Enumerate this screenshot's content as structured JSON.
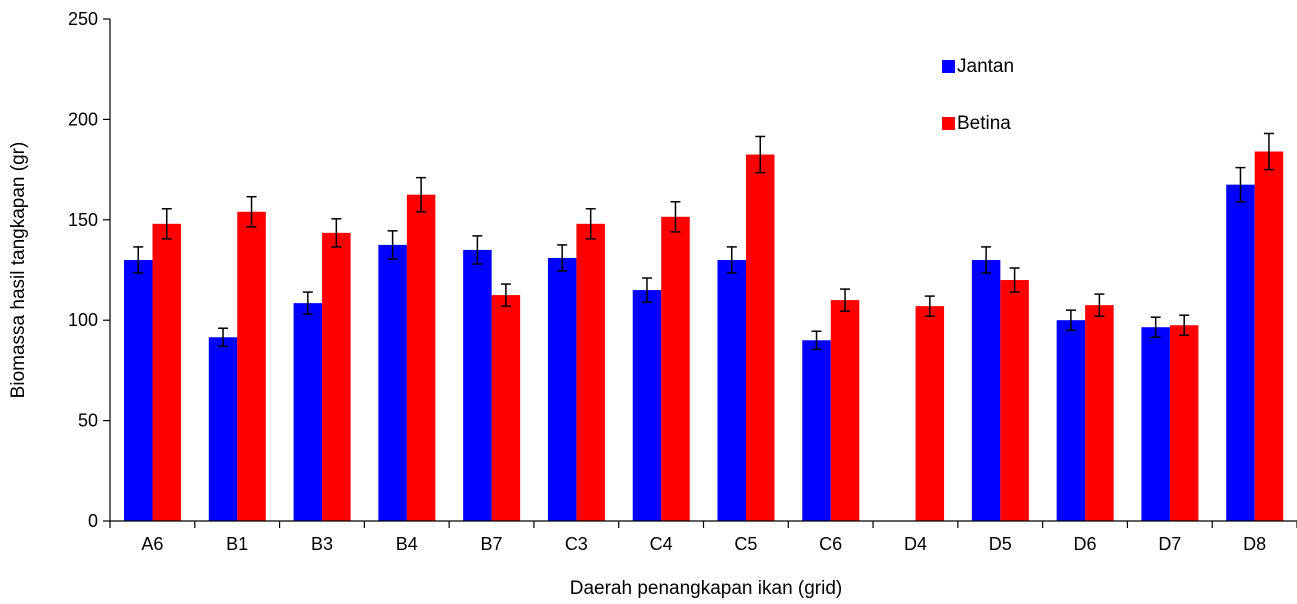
{
  "chart_data": {
    "type": "bar",
    "xlabel": "Daerah penangkapan ikan (grid)",
    "ylabel": "Biomassa hasil tangkapan (gr)",
    "ylim": [
      0,
      250
    ],
    "yticks": [
      0,
      50,
      100,
      150,
      200,
      250
    ],
    "grid": false,
    "legend_position": "top-right",
    "categories": [
      "A6",
      "B1",
      "B3",
      "B4",
      "B7",
      "C3",
      "C4",
      "C5",
      "C6",
      "D4",
      "D5",
      "D6",
      "D7",
      "D8"
    ],
    "series": [
      {
        "name": "Jantan",
        "color": "#0000ff",
        "values": [
          130,
          91.5,
          108.5,
          137.5,
          135,
          131,
          115,
          130,
          90,
          0,
          130,
          100,
          96.5,
          167.5
        ],
        "errors": [
          6.5,
          4.5,
          5.5,
          7,
          7,
          6.5,
          6,
          6.5,
          4.5,
          0,
          6.5,
          5,
          5,
          8.5
        ]
      },
      {
        "name": "Betina",
        "color": "#ff0000",
        "values": [
          148,
          154,
          143.5,
          162.5,
          112.5,
          148,
          151.5,
          182.5,
          110,
          107,
          120,
          107.5,
          97.5,
          184
        ],
        "errors": [
          7.5,
          7.5,
          7,
          8.5,
          5.5,
          7.5,
          7.5,
          9,
          5.5,
          5,
          6,
          5.5,
          5,
          9
        ]
      }
    ]
  }
}
